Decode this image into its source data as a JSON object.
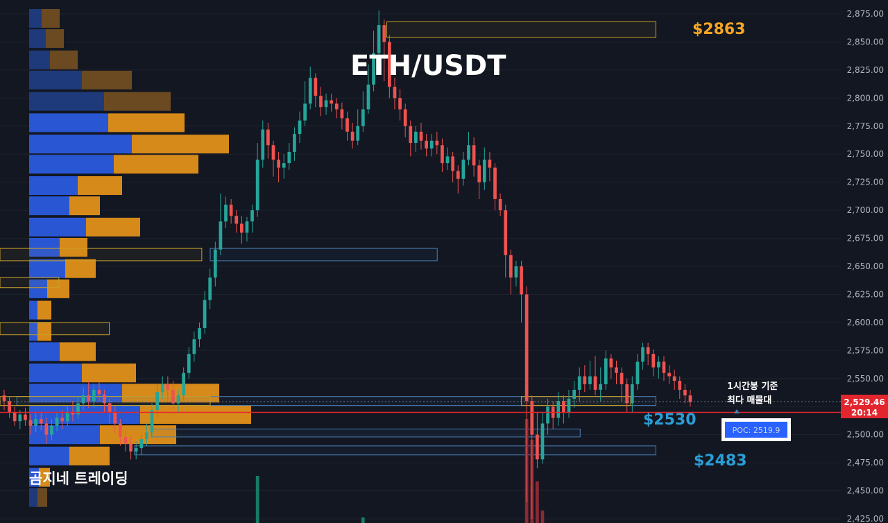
{
  "chart_data": {
    "type": "candlestick",
    "title": "ETH/USDT",
    "watermark": "곰지네 트레이딩",
    "y_ticks": [
      2875,
      2850,
      2825,
      2800,
      2775,
      2750,
      2725,
      2700,
      2675,
      2650,
      2625,
      2600,
      2575,
      2550,
      2525,
      2500,
      2475,
      2450,
      2425
    ],
    "y_tick_labels": [
      "2,875.00",
      "2,850.00",
      "2,825.00",
      "2,800.00",
      "2,775.00",
      "2,750.00",
      "2,725.00",
      "2,700.00",
      "2,675.00",
      "2,650.00",
      "2,625.00",
      "2,600.00",
      "2,575.00",
      "2,550.00",
      "2,525.00",
      "2,500.00",
      "2,475.00",
      "2,450.00",
      "2,425.00"
    ],
    "ylim": [
      2420,
      2885
    ],
    "current_price": {
      "label": "2,529.46",
      "value": 2529.46,
      "timer": "20:14"
    },
    "poc": {
      "label": "POC: 2519.9",
      "value": 2519.9
    },
    "annotations": {
      "high_label": "$2863",
      "mid_label": "$2530",
      "low_label": "$2483",
      "note_line1": "1시간봉 기준",
      "note_line2": "최다 매물대"
    },
    "volume_profile": [
      {
        "price": 2871,
        "buy": 18,
        "sell": 26
      },
      {
        "price": 2853,
        "buy": 24,
        "sell": 26
      },
      {
        "price": 2834,
        "buy": 30,
        "sell": 40
      },
      {
        "price": 2816,
        "buy": 76,
        "sell": 72
      },
      {
        "price": 2797,
        "buy": 108,
        "sell": 96
      },
      {
        "price": 2778,
        "buy": 114,
        "sell": 110
      },
      {
        "price": 2759,
        "buy": 148,
        "sell": 140
      },
      {
        "price": 2741,
        "buy": 122,
        "sell": 122
      },
      {
        "price": 2722,
        "buy": 70,
        "sell": 64
      },
      {
        "price": 2704,
        "buy": 58,
        "sell": 44
      },
      {
        "price": 2685,
        "buy": 82,
        "sell": 78
      },
      {
        "price": 2667,
        "buy": 44,
        "sell": 40
      },
      {
        "price": 2648,
        "buy": 52,
        "sell": 44
      },
      {
        "price": 2630,
        "buy": 26,
        "sell": 32
      },
      {
        "price": 2611,
        "buy": 12,
        "sell": 20
      },
      {
        "price": 2592,
        "buy": 12,
        "sell": 20
      },
      {
        "price": 2574,
        "buy": 44,
        "sell": 52
      },
      {
        "price": 2555,
        "buy": 76,
        "sell": 78
      },
      {
        "price": 2537,
        "buy": 134,
        "sell": 140
      },
      {
        "price": 2518,
        "buy": 160,
        "sell": 160
      },
      {
        "price": 2500,
        "buy": 102,
        "sell": 110
      },
      {
        "price": 2481,
        "buy": 58,
        "sell": 58
      },
      {
        "price": 2462,
        "buy": 14,
        "sell": 16
      },
      {
        "price": 2444,
        "buy": 12,
        "sell": 14
      }
    ],
    "zones": [
      {
        "kind": "gold",
        "from_x": 0.46,
        "to_x": 0.78,
        "p_top": 2868,
        "p_bot": 2854
      },
      {
        "kind": "blue",
        "from_x": 0.25,
        "to_x": 0.52,
        "p_top": 2666,
        "p_bot": 2655
      },
      {
        "kind": "gold",
        "from_x": 0.0,
        "to_x": 0.24,
        "p_top": 2666,
        "p_bot": 2655
      },
      {
        "kind": "gold",
        "from_x": 0.0,
        "to_x": 0.07,
        "p_top": 2640,
        "p_bot": 2631
      },
      {
        "kind": "gold",
        "from_x": 0.0,
        "to_x": 0.13,
        "p_top": 2600,
        "p_bot": 2589
      },
      {
        "kind": "blue",
        "from_x": 0.02,
        "to_x": 0.78,
        "p_top": 2534,
        "p_bot": 2526
      },
      {
        "kind": "gold",
        "from_x": 0.0,
        "to_x": 0.25,
        "p_top": 2534,
        "p_bot": 2526
      },
      {
        "kind": "gold",
        "from_x": 0.62,
        "to_x": 0.75,
        "p_top": 2534,
        "p_bot": 2526
      },
      {
        "kind": "blue",
        "from_x": 0.18,
        "to_x": 0.69,
        "p_top": 2505,
        "p_bot": 2498
      },
      {
        "kind": "blue",
        "from_x": 0.16,
        "to_x": 0.78,
        "p_top": 2490,
        "p_bot": 2482
      }
    ],
    "candles": [
      [
        2535,
        2530,
        2540,
        2522
      ],
      [
        2530,
        2520,
        2534,
        2515
      ],
      [
        2520,
        2512,
        2525,
        2508
      ],
      [
        2512,
        2518,
        2522,
        2505
      ],
      [
        2518,
        2513,
        2524,
        2508
      ],
      [
        2513,
        2508,
        2518,
        2500
      ],
      [
        2508,
        2514,
        2520,
        2502
      ],
      [
        2514,
        2510,
        2520,
        2504
      ],
      [
        2510,
        2500,
        2515,
        2492
      ],
      [
        2500,
        2508,
        2514,
        2495
      ],
      [
        2508,
        2515,
        2520,
        2503
      ],
      [
        2515,
        2512,
        2522,
        2505
      ],
      [
        2512,
        2520,
        2526,
        2508
      ],
      [
        2520,
        2518,
        2530,
        2512
      ],
      [
        2518,
        2528,
        2534,
        2514
      ],
      [
        2528,
        2535,
        2542,
        2522
      ],
      [
        2535,
        2530,
        2548,
        2524
      ],
      [
        2530,
        2540,
        2545,
        2524
      ],
      [
        2540,
        2536,
        2548,
        2530
      ],
      [
        2536,
        2528,
        2540,
        2520
      ],
      [
        2528,
        2520,
        2532,
        2510
      ],
      [
        2520,
        2510,
        2525,
        2502
      ],
      [
        2510,
        2498,
        2514,
        2490
      ],
      [
        2498,
        2492,
        2504,
        2485
      ],
      [
        2492,
        2485,
        2498,
        2478
      ],
      [
        2485,
        2488,
        2494,
        2478
      ],
      [
        2488,
        2496,
        2500,
        2482
      ],
      [
        2496,
        2502,
        2510,
        2490
      ],
      [
        2502,
        2522,
        2528,
        2498
      ],
      [
        2522,
        2538,
        2545,
        2515
      ],
      [
        2538,
        2545,
        2552,
        2532
      ],
      [
        2545,
        2540,
        2552,
        2530
      ],
      [
        2540,
        2528,
        2548,
        2522
      ],
      [
        2528,
        2535,
        2540,
        2520
      ],
      [
        2535,
        2555,
        2560,
        2530
      ],
      [
        2555,
        2572,
        2578,
        2550
      ],
      [
        2572,
        2585,
        2592,
        2565
      ],
      [
        2585,
        2595,
        2600,
        2578
      ],
      [
        2595,
        2620,
        2628,
        2590
      ],
      [
        2620,
        2640,
        2648,
        2612
      ],
      [
        2640,
        2665,
        2672,
        2632
      ],
      [
        2665,
        2690,
        2715,
        2660
      ],
      [
        2690,
        2705,
        2712,
        2684
      ],
      [
        2705,
        2695,
        2710,
        2688
      ],
      [
        2695,
        2688,
        2700,
        2680
      ],
      [
        2688,
        2680,
        2695,
        2670
      ],
      [
        2680,
        2690,
        2694,
        2672
      ],
      [
        2690,
        2700,
        2705,
        2680
      ],
      [
        2700,
        2745,
        2760,
        2694
      ],
      [
        2745,
        2772,
        2780,
        2738
      ],
      [
        2772,
        2758,
        2778,
        2746
      ],
      [
        2758,
        2745,
        2762,
        2730
      ],
      [
        2745,
        2738,
        2752,
        2725
      ],
      [
        2738,
        2742,
        2750,
        2728
      ],
      [
        2742,
        2752,
        2760,
        2736
      ],
      [
        2752,
        2768,
        2774,
        2744
      ],
      [
        2768,
        2780,
        2788,
        2760
      ],
      [
        2780,
        2795,
        2815,
        2775
      ],
      [
        2795,
        2818,
        2828,
        2790
      ],
      [
        2818,
        2802,
        2822,
        2792
      ],
      [
        2802,
        2792,
        2810,
        2784
      ],
      [
        2792,
        2798,
        2804,
        2785
      ],
      [
        2798,
        2795,
        2804,
        2788
      ],
      [
        2795,
        2790,
        2800,
        2782
      ],
      [
        2790,
        2782,
        2796,
        2772
      ],
      [
        2782,
        2770,
        2788,
        2762
      ],
      [
        2770,
        2762,
        2778,
        2755
      ],
      [
        2762,
        2775,
        2790,
        2758
      ],
      [
        2775,
        2790,
        2806,
        2770
      ],
      [
        2790,
        2812,
        2830,
        2786
      ],
      [
        2812,
        2840,
        2860,
        2806
      ],
      [
        2840,
        2865,
        2878,
        2835
      ],
      [
        2865,
        2850,
        2870,
        2815
      ],
      [
        2850,
        2810,
        2856,
        2800
      ],
      [
        2810,
        2800,
        2818,
        2790
      ],
      [
        2800,
        2790,
        2808,
        2780
      ],
      [
        2790,
        2775,
        2795,
        2765
      ],
      [
        2775,
        2760,
        2780,
        2748
      ],
      [
        2760,
        2770,
        2775,
        2752
      ],
      [
        2770,
        2762,
        2778,
        2754
      ],
      [
        2762,
        2755,
        2768,
        2748
      ],
      [
        2755,
        2762,
        2768,
        2748
      ],
      [
        2762,
        2758,
        2770,
        2750
      ],
      [
        2758,
        2742,
        2764,
        2734
      ],
      [
        2742,
        2748,
        2756,
        2736
      ],
      [
        2748,
        2735,
        2752,
        2725
      ],
      [
        2735,
        2728,
        2740,
        2715
      ],
      [
        2728,
        2745,
        2752,
        2722
      ],
      [
        2745,
        2758,
        2770,
        2740
      ],
      [
        2758,
        2740,
        2765,
        2730
      ],
      [
        2740,
        2725,
        2745,
        2710
      ],
      [
        2725,
        2745,
        2756,
        2718
      ],
      [
        2745,
        2738,
        2752,
        2726
      ],
      [
        2738,
        2710,
        2742,
        2700
      ],
      [
        2710,
        2700,
        2715,
        2695
      ],
      [
        2700,
        2660,
        2705,
        2640
      ],
      [
        2660,
        2640,
        2665,
        2625
      ],
      [
        2640,
        2650,
        2655,
        2632
      ],
      [
        2650,
        2625,
        2655,
        2600
      ],
      [
        2625,
        2530,
        2632,
        2440
      ],
      [
        2530,
        2500,
        2535,
        2425
      ],
      [
        2500,
        2478,
        2520,
        2470
      ],
      [
        2478,
        2510,
        2520,
        2474
      ],
      [
        2510,
        2525,
        2532,
        2500
      ],
      [
        2525,
        2515,
        2530,
        2505
      ],
      [
        2515,
        2530,
        2538,
        2508
      ],
      [
        2530,
        2520,
        2535,
        2510
      ],
      [
        2520,
        2532,
        2540,
        2515
      ],
      [
        2532,
        2540,
        2548,
        2524
      ],
      [
        2540,
        2552,
        2560,
        2530
      ],
      [
        2552,
        2545,
        2562,
        2538
      ],
      [
        2545,
        2552,
        2566,
        2540
      ],
      [
        2552,
        2540,
        2570,
        2535
      ],
      [
        2540,
        2545,
        2560,
        2530
      ],
      [
        2545,
        2568,
        2575,
        2540
      ],
      [
        2568,
        2560,
        2572,
        2550
      ],
      [
        2560,
        2555,
        2566,
        2545
      ],
      [
        2555,
        2545,
        2560,
        2530
      ],
      [
        2545,
        2528,
        2550,
        2520
      ],
      [
        2528,
        2545,
        2552,
        2520
      ],
      [
        2545,
        2565,
        2572,
        2540
      ],
      [
        2565,
        2578,
        2582,
        2558
      ],
      [
        2578,
        2572,
        2582,
        2562
      ],
      [
        2572,
        2560,
        2576,
        2552
      ],
      [
        2560,
        2565,
        2570,
        2550
      ],
      [
        2565,
        2555,
        2570,
        2548
      ],
      [
        2555,
        2552,
        2562,
        2545
      ],
      [
        2552,
        2548,
        2558,
        2540
      ],
      [
        2548,
        2540,
        2552,
        2532
      ],
      [
        2540,
        2535,
        2545,
        2528
      ],
      [
        2535,
        2529,
        2540,
        2525
      ]
    ],
    "volume_bars": [
      {
        "i": 48,
        "value": 68,
        "color": "#1a7a63"
      },
      {
        "i": 68,
        "value": 8,
        "color": "#1a7a63"
      },
      {
        "i": 99,
        "value": 150,
        "color": "#8a2a35"
      },
      {
        "i": 100,
        "value": 120,
        "color": "#8a2a35"
      },
      {
        "i": 101,
        "value": 60,
        "color": "#8a2a35"
      },
      {
        "i": 102,
        "value": 18,
        "color": "#8a2a35"
      }
    ],
    "colors": {
      "up": "#26a69a",
      "down": "#ef5350",
      "profile_buy": "#2957d4",
      "profile_buy_dim": "#1e3a7a",
      "profile_sell": "#d68a1a",
      "profile_sell_dim": "#6b4a22",
      "price_line": "#e3262e",
      "gold_zone": "#c9a227",
      "blue_zone": "#4a7fb5"
    }
  }
}
